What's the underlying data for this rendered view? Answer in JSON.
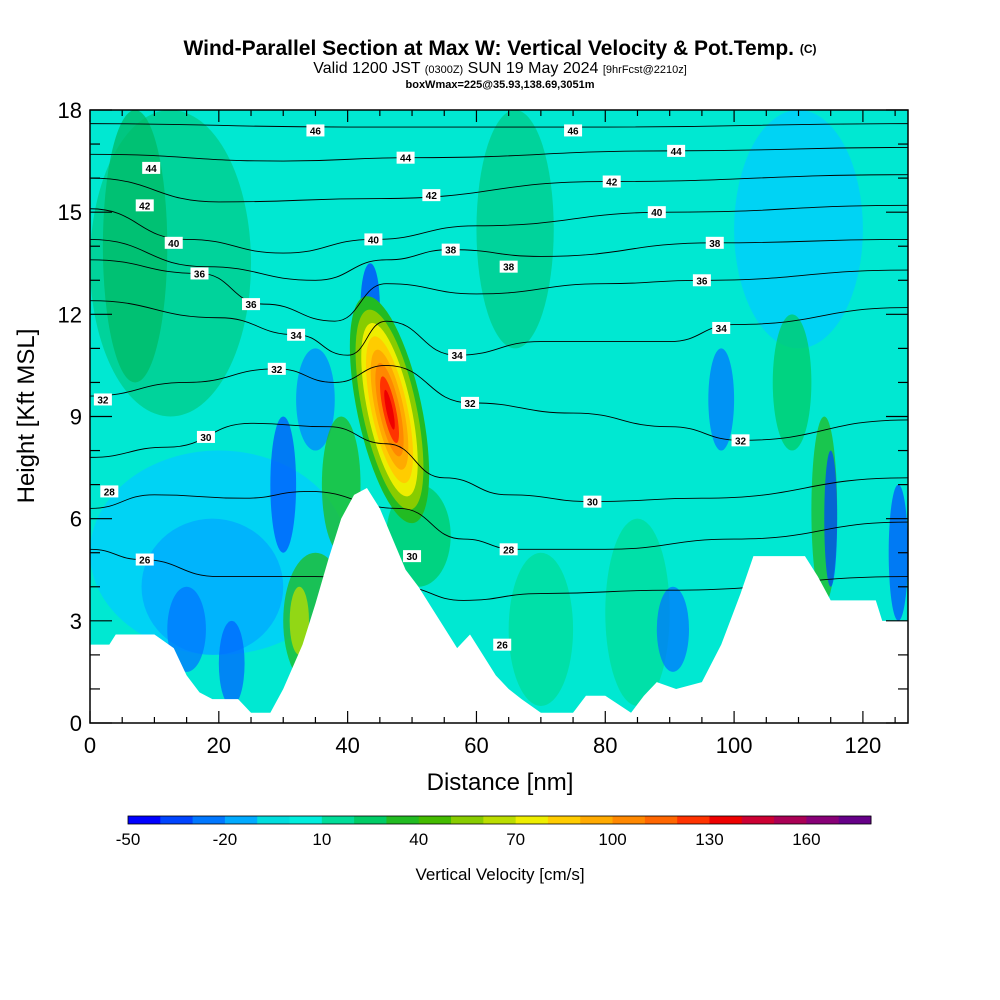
{
  "header": {
    "title_main": "Wind-Parallel Section at Max W: Vertical Velocity & Pot.Temp.",
    "title_copyright": "(C)",
    "valid_prefix": "Valid 1200 JST",
    "valid_zulu": "(0300Z)",
    "valid_date": "SUN 19 May 2024",
    "forecast_info": "[9hrFcst@2210z]",
    "box_info": "boxWmax=225@35.93,138.69,3051m"
  },
  "chart_data": {
    "type": "heatmap",
    "xlabel": "Distance [nm]",
    "ylabel": "Height [Kft MSL]",
    "xlim": [
      0,
      127
    ],
    "ylim": [
      0,
      18
    ],
    "x_ticks": [
      0,
      20,
      40,
      60,
      80,
      100,
      120
    ],
    "y_ticks": [
      0,
      3,
      6,
      9,
      12,
      15,
      18
    ],
    "colorbar": {
      "label": "Vertical Velocity [cm/s]",
      "min": -50,
      "max": 180,
      "step": 10,
      "tick_values": [
        -50,
        -20,
        10,
        40,
        70,
        100,
        130,
        160
      ],
      "colors": [
        "#0000ff",
        "#0044ff",
        "#0077ff",
        "#00aaff",
        "#00dddd",
        "#00eedd",
        "#00dd99",
        "#00cc66",
        "#22bb22",
        "#44bb00",
        "#88cc00",
        "#bbdd00",
        "#eeee00",
        "#ffcc00",
        "#ffaa00",
        "#ff8800",
        "#ff6600",
        "#ff3300",
        "#ee0000",
        "#cc0033",
        "#aa0055",
        "#880077",
        "#660088"
      ]
    },
    "terrain": [
      [
        0,
        2.3
      ],
      [
        3,
        2.3
      ],
      [
        4,
        2.6
      ],
      [
        10,
        2.6
      ],
      [
        13,
        2.2
      ],
      [
        15,
        1.4
      ],
      [
        17,
        0.9
      ],
      [
        19,
        0.7
      ],
      [
        23,
        0.7
      ],
      [
        25,
        0.3
      ],
      [
        28,
        0.3
      ],
      [
        30,
        1.0
      ],
      [
        33,
        2.3
      ],
      [
        35,
        3.5
      ],
      [
        37,
        4.8
      ],
      [
        39,
        6.0
      ],
      [
        41,
        6.7
      ],
      [
        43,
        6.9
      ],
      [
        45,
        6.3
      ],
      [
        47,
        5.4
      ],
      [
        49,
        4.5
      ],
      [
        51,
        4.0
      ],
      [
        53,
        3.4
      ],
      [
        55,
        2.8
      ],
      [
        57,
        2.2
      ],
      [
        59,
        2.6
      ],
      [
        61,
        2.0
      ],
      [
        63,
        1.4
      ],
      [
        65,
        1.0
      ],
      [
        67,
        0.7
      ],
      [
        70,
        0.3
      ],
      [
        75,
        0.3
      ],
      [
        77,
        0.8
      ],
      [
        80,
        0.8
      ],
      [
        84,
        0.3
      ],
      [
        86,
        0.8
      ],
      [
        88,
        1.2
      ],
      [
        91,
        1.0
      ],
      [
        95,
        1.2
      ],
      [
        98,
        2.3
      ],
      [
        101,
        3.8
      ],
      [
        103,
        4.9
      ],
      [
        111,
        4.9
      ],
      [
        113,
        4.3
      ],
      [
        115,
        3.6
      ],
      [
        122,
        3.6
      ],
      [
        123,
        3.0
      ],
      [
        127,
        3.0
      ]
    ],
    "theta_labels": [
      {
        "text": "46",
        "x": 35,
        "y": 17.4
      },
      {
        "text": "46",
        "x": 75,
        "y": 17.4
      },
      {
        "text": "44",
        "x": 9.5,
        "y": 16.3
      },
      {
        "text": "44",
        "x": 49,
        "y": 16.6
      },
      {
        "text": "44",
        "x": 91,
        "y": 16.8
      },
      {
        "text": "42",
        "x": 8.5,
        "y": 15.2
      },
      {
        "text": "42",
        "x": 53,
        "y": 15.5
      },
      {
        "text": "42",
        "x": 81,
        "y": 15.9
      },
      {
        "text": "40",
        "x": 13,
        "y": 14.1
      },
      {
        "text": "40",
        "x": 44,
        "y": 14.2
      },
      {
        "text": "40",
        "x": 88,
        "y": 15.0
      },
      {
        "text": "38",
        "x": 56,
        "y": 13.9
      },
      {
        "text": "38",
        "x": 65,
        "y": 13.4
      },
      {
        "text": "38",
        "x": 97,
        "y": 14.1
      },
      {
        "text": "36",
        "x": 17,
        "y": 13.2
      },
      {
        "text": "36",
        "x": 25,
        "y": 12.3
      },
      {
        "text": "36",
        "x": 95,
        "y": 13.0
      },
      {
        "text": "34",
        "x": 32,
        "y": 11.4
      },
      {
        "text": "34",
        "x": 57,
        "y": 10.8
      },
      {
        "text": "34",
        "x": 98,
        "y": 11.6
      },
      {
        "text": "32",
        "x": 2,
        "y": 9.5
      },
      {
        "text": "32",
        "x": 29,
        "y": 10.4
      },
      {
        "text": "32",
        "x": 59,
        "y": 9.4
      },
      {
        "text": "32",
        "x": 101,
        "y": 8.3
      },
      {
        "text": "30",
        "x": 18,
        "y": 8.4
      },
      {
        "text": "30",
        "x": 78,
        "y": 6.5
      },
      {
        "text": "30",
        "x": 50,
        "y": 4.9
      },
      {
        "text": "28",
        "x": 3,
        "y": 6.8
      },
      {
        "text": "28",
        "x": 65,
        "y": 5.1
      },
      {
        "text": "26",
        "x": 8.5,
        "y": 4.8
      },
      {
        "text": "26",
        "x": 64,
        "y": 2.3
      }
    ],
    "theta_contours": [
      {
        "level": 46,
        "points": [
          [
            0,
            17.6
          ],
          [
            40,
            17.5
          ],
          [
            80,
            17.5
          ],
          [
            127,
            17.6
          ]
        ]
      },
      {
        "level": 44,
        "points": [
          [
            0,
            16.7
          ],
          [
            30,
            16.5
          ],
          [
            50,
            16.6
          ],
          [
            90,
            16.8
          ],
          [
            127,
            16.9
          ]
        ]
      },
      {
        "level": 42,
        "points": [
          [
            0,
            16.0
          ],
          [
            20,
            15.3
          ],
          [
            45,
            15.4
          ],
          [
            80,
            15.9
          ],
          [
            127,
            16.1
          ]
        ]
      },
      {
        "level": 40,
        "points": [
          [
            0,
            15.1
          ],
          [
            15,
            14.2
          ],
          [
            30,
            13.8
          ],
          [
            44,
            14.2
          ],
          [
            60,
            14.6
          ],
          [
            90,
            15.0
          ],
          [
            127,
            15.2
          ]
        ]
      },
      {
        "level": 38,
        "points": [
          [
            0,
            14.2
          ],
          [
            18,
            13.4
          ],
          [
            35,
            13.0
          ],
          [
            46,
            13.6
          ],
          [
            56,
            13.9
          ],
          [
            70,
            13.7
          ],
          [
            97,
            14.1
          ],
          [
            127,
            14.2
          ]
        ]
      },
      {
        "level": 36,
        "points": [
          [
            0,
            13.6
          ],
          [
            17,
            13.2
          ],
          [
            27,
            12.3
          ],
          [
            38,
            11.8
          ],
          [
            46,
            12.9
          ],
          [
            60,
            12.6
          ],
          [
            80,
            12.9
          ],
          [
            95,
            13.0
          ],
          [
            127,
            13.3
          ]
        ]
      },
      {
        "level": 34,
        "points": [
          [
            0,
            12.4
          ],
          [
            20,
            11.9
          ],
          [
            32,
            11.4
          ],
          [
            40,
            10.8
          ],
          [
            46,
            11.8
          ],
          [
            57,
            10.8
          ],
          [
            70,
            11.2
          ],
          [
            90,
            11.2
          ],
          [
            100,
            11.7
          ],
          [
            127,
            12.2
          ]
        ]
      },
      {
        "level": 32,
        "points": [
          [
            0,
            9.6
          ],
          [
            15,
            10.0
          ],
          [
            29,
            10.4
          ],
          [
            38,
            10.0
          ],
          [
            46,
            10.5
          ],
          [
            59,
            9.4
          ],
          [
            75,
            9.1
          ],
          [
            90,
            8.7
          ],
          [
            101,
            8.3
          ],
          [
            127,
            8.9
          ]
        ]
      },
      {
        "level": 30,
        "points": [
          [
            0,
            7.8
          ],
          [
            12,
            8.1
          ],
          [
            25,
            8.8
          ],
          [
            37,
            8.7
          ],
          [
            46,
            8.2
          ],
          [
            55,
            7.2
          ],
          [
            65,
            6.7
          ],
          [
            78,
            6.5
          ],
          [
            95,
            6.6
          ],
          [
            127,
            7.2
          ]
        ]
      },
      {
        "level": 28,
        "points": [
          [
            0,
            6.3
          ],
          [
            10,
            6.7
          ],
          [
            24,
            6.6
          ],
          [
            34,
            6.8
          ],
          [
            48,
            6.3
          ],
          [
            58,
            5.4
          ],
          [
            66,
            5.1
          ],
          [
            80,
            5.1
          ],
          [
            100,
            5.4
          ],
          [
            127,
            5.9
          ]
        ]
      },
      {
        "level": 26,
        "points": [
          [
            0,
            5.1
          ],
          [
            8,
            4.8
          ],
          [
            20,
            4.3
          ],
          [
            35,
            4.3
          ],
          [
            48,
            4.0
          ],
          [
            58,
            3.6
          ],
          [
            70,
            3.8
          ],
          [
            90,
            3.9
          ],
          [
            127,
            4.3
          ]
        ]
      }
    ]
  }
}
